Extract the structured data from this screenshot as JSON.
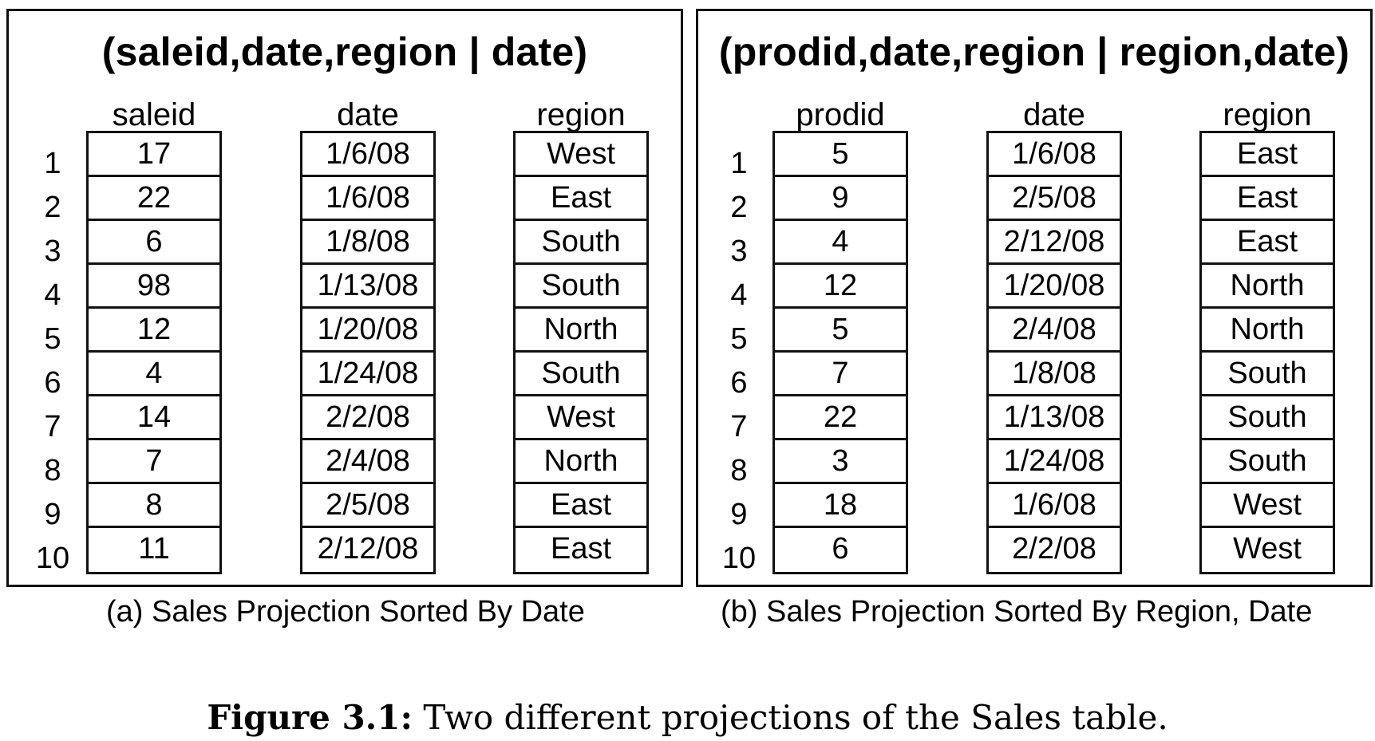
{
  "panel_a": {
    "title": "(saleid,date,region | date)",
    "columns": [
      {
        "header": "saleid",
        "values": [
          "17",
          "22",
          "6",
          "98",
          "12",
          "4",
          "14",
          "7",
          "8",
          "11"
        ]
      },
      {
        "header": "date",
        "values": [
          "1/6/08",
          "1/6/08",
          "1/8/08",
          "1/13/08",
          "1/20/08",
          "1/24/08",
          "2/2/08",
          "2/4/08",
          "2/5/08",
          "2/12/08"
        ]
      },
      {
        "header": "region",
        "values": [
          "West",
          "East",
          "South",
          "South",
          "North",
          "South",
          "West",
          "North",
          "East",
          "East"
        ]
      }
    ],
    "row_numbers": [
      "1",
      "2",
      "3",
      "4",
      "5",
      "6",
      "7",
      "8",
      "9",
      "10"
    ],
    "caption": "(a) Sales Projection Sorted  By Date"
  },
  "panel_b": {
    "title": "(prodid,date,region | region,date)",
    "columns": [
      {
        "header": "prodid",
        "values": [
          "5",
          "9",
          "4",
          "12",
          "5",
          "7",
          "22",
          "3",
          "18",
          "6"
        ]
      },
      {
        "header": "date",
        "values": [
          "1/6/08",
          "2/5/08",
          "2/12/08",
          "1/20/08",
          "2/4/08",
          "1/8/08",
          "1/13/08",
          "1/24/08",
          "1/6/08",
          "2/2/08"
        ]
      },
      {
        "header": "region",
        "values": [
          "East",
          "East",
          "East",
          "North",
          "North",
          "South",
          "South",
          "South",
          "West",
          "West"
        ]
      }
    ],
    "row_numbers": [
      "1",
      "2",
      "3",
      "4",
      "5",
      "6",
      "7",
      "8",
      "9",
      "10"
    ],
    "caption": "(b) Sales Projection Sorted  By Region, Date"
  },
  "figure_caption": {
    "label": "Figure 3.1:",
    "text": " Two different projections of the Sales table."
  }
}
